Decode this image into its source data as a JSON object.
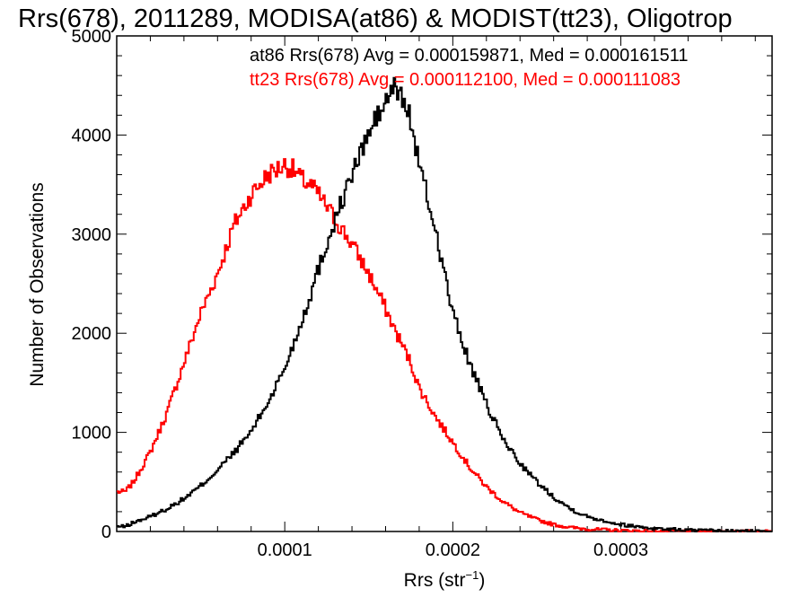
{
  "chart_data": {
    "type": "line",
    "title": "Rrs(678), 2011289, MODISA(at86) & MODIST(tt23), Oligotrop",
    "xlabel": "Rrs (str",
    "xlabel_sup": "−1",
    "xlabel_close": ")",
    "ylabel": "Number of Observations",
    "xlim": [
      0.0,
      0.00039
    ],
    "ylim": [
      0,
      5000
    ],
    "x_ticks": [
      0.0001,
      0.0002,
      0.0003
    ],
    "x_tick_labels": [
      "0.0001",
      "0.0002",
      "0.0003"
    ],
    "y_ticks": [
      0,
      1000,
      2000,
      3000,
      4000,
      5000
    ],
    "y_tick_labels": [
      "0",
      "1000",
      "2000",
      "3000",
      "4000",
      "5000"
    ],
    "grid": false,
    "step": true,
    "x": [
      5e-06,
      1e-05,
      2e-05,
      3e-05,
      4e-05,
      5e-05,
      6e-05,
      7e-05,
      8e-05,
      9e-05,
      0.0001,
      0.000105,
      0.00011,
      0.000115,
      0.00012,
      0.00013,
      0.00014,
      0.00015,
      0.00016,
      0.000165,
      0.00017,
      0.000175,
      0.00018,
      0.00019,
      0.0002,
      0.00021,
      0.00022,
      0.00023,
      0.00024,
      0.00025,
      0.00026,
      0.00027,
      0.00028,
      0.0003,
      0.00032,
      0.00034,
      0.00036,
      0.00039
    ],
    "series": [
      {
        "name": "at86",
        "color": "#000000",
        "values": [
          50,
          90,
          150,
          230,
          330,
          460,
          620,
          800,
          1010,
          1300,
          1650,
          1880,
          2120,
          2370,
          2650,
          3150,
          3600,
          4020,
          4330,
          4480,
          4380,
          4150,
          3700,
          3020,
          2200,
          1700,
          1280,
          930,
          690,
          500,
          350,
          230,
          150,
          70,
          30,
          15,
          5,
          2
        ]
      },
      {
        "name": "tt23",
        "color": "#ff0000",
        "values": [
          400,
          500,
          800,
          1200,
          1700,
          2200,
          2600,
          3100,
          3400,
          3600,
          3700,
          3650,
          3550,
          3500,
          3400,
          3150,
          2900,
          2600,
          2250,
          2050,
          1880,
          1700,
          1450,
          1150,
          900,
          650,
          450,
          300,
          190,
          120,
          70,
          40,
          25,
          10,
          5,
          2,
          1,
          0
        ]
      }
    ],
    "annotations": [
      {
        "text": "at86 Rrs(678) Avg = 0.000159871, Med = 0.000161511",
        "color": "#000000"
      },
      {
        "text": "tt23 Rrs(678) Avg = 0.000112100, Med = 0.000111083",
        "color": "#ff0000"
      }
    ]
  }
}
